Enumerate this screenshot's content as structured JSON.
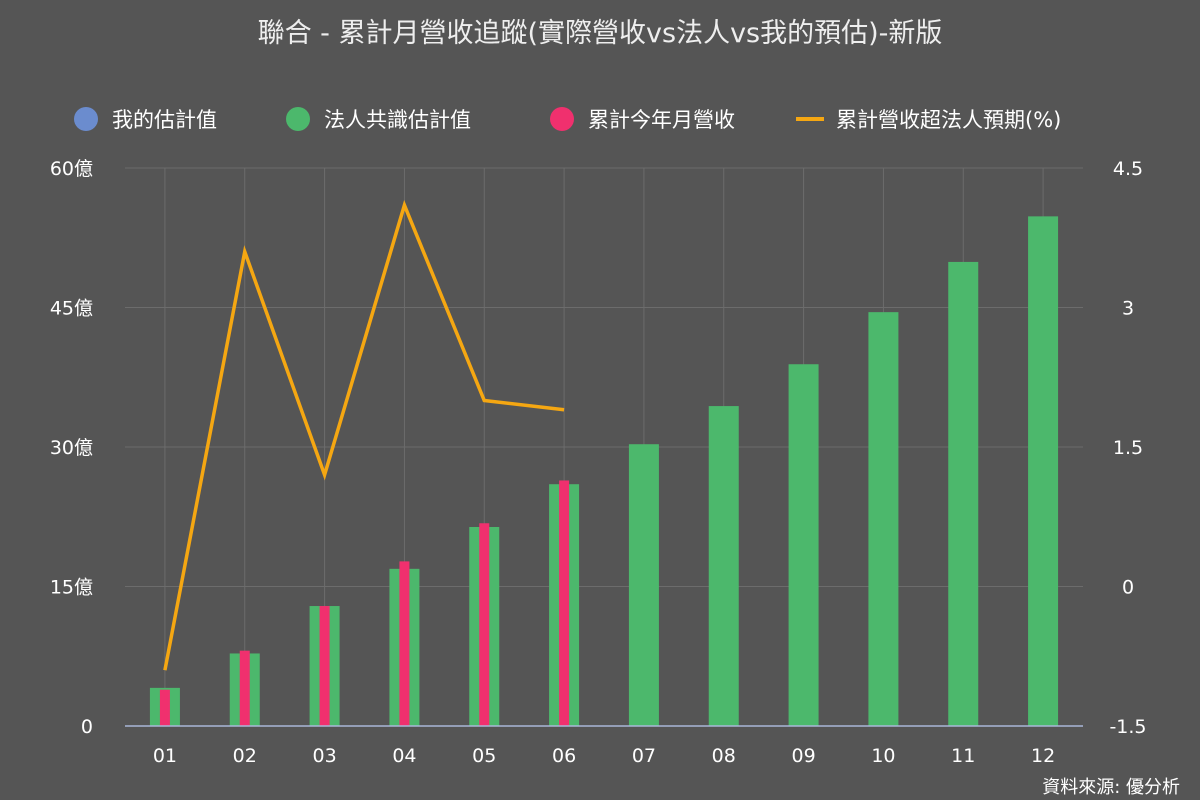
{
  "chart_data": {
    "type": "bar",
    "title": "聯合 - 累計月營收追蹤(實際營收vs法人vs我的預估)-新版",
    "categories": [
      "01",
      "02",
      "03",
      "04",
      "05",
      "06",
      "07",
      "08",
      "09",
      "10",
      "11",
      "12"
    ],
    "series": [
      {
        "name": "我的估計值",
        "type": "bar",
        "color": "#6b8cce",
        "values": [
          null,
          null,
          null,
          null,
          null,
          null,
          null,
          null,
          null,
          null,
          null,
          null
        ]
      },
      {
        "name": "法人共識估計值",
        "type": "bar",
        "color": "#4cb86c",
        "values": [
          4.1,
          7.8,
          12.9,
          16.9,
          21.4,
          26.0,
          30.3,
          34.4,
          38.9,
          44.5,
          49.9,
          54.8
        ]
      },
      {
        "name": "累計今年月營收",
        "type": "bar",
        "color": "#f0306e",
        "values": [
          3.9,
          8.1,
          12.9,
          17.7,
          21.8,
          26.4,
          null,
          null,
          null,
          null,
          null,
          null
        ]
      },
      {
        "name": "累計營收超法人預期(%)",
        "type": "line",
        "axis": "right",
        "color": "#f5a712",
        "values": [
          -0.9,
          3.6,
          1.2,
          4.1,
          2.0,
          1.9,
          null,
          null,
          null,
          null,
          null,
          null
        ]
      }
    ],
    "y_left": {
      "min": 0,
      "max": 60,
      "ticks": [
        0,
        15,
        30,
        45,
        60
      ],
      "tick_labels": [
        "0",
        "15億",
        "30億",
        "45億",
        "60億"
      ]
    },
    "y_right": {
      "min": -1.5,
      "max": 4.5,
      "ticks": [
        -1.5,
        0,
        1.5,
        3,
        4.5
      ],
      "tick_labels": [
        "-1.5",
        "0",
        "1.5",
        "3",
        "4.5"
      ]
    },
    "grid": true,
    "legend_position": "top"
  },
  "source_label": "資料來源: 優分析"
}
